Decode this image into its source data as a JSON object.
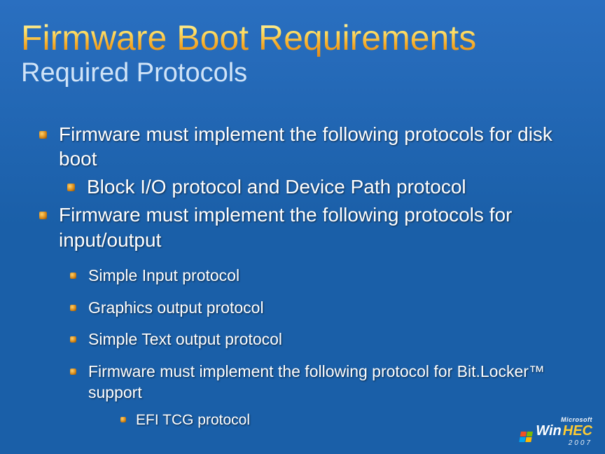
{
  "slide": {
    "background_gradient": [
      "#2a6fc0",
      "#1a5fa8"
    ],
    "title": "Firmware Boot Requirements",
    "title_gradient": [
      "#fff3b0",
      "#ffe36b",
      "#f5a623",
      "#e08a1a"
    ],
    "title_fontsize": 50,
    "subtitle": "Required Protocols",
    "subtitle_color": "#cfe3f7",
    "subtitle_fontsize": 38,
    "bullet_color_gradient": [
      "#ffd36b",
      "#d98a1a",
      "#7a4a0a"
    ],
    "text_color": "#ffffff",
    "bullets_lvl1": [
      {
        "text": "Firmware must implement the following protocols for disk boot",
        "indent": false
      },
      {
        "text": "Block I/O protocol and Device Path protocol",
        "indent": true
      },
      {
        "text": "Firmware must implement the following protocols for input/output",
        "indent": false
      }
    ],
    "bullets_lvl2": [
      "Simple Input protocol",
      "Graphics output protocol",
      "Simple Text output protocol",
      "Firmware must implement the following protocol for Bit.Locker™ support"
    ],
    "bullets_lvl3": [
      "EFI TCG protocol"
    ],
    "lvl1_fontsize": 28,
    "lvl2_fontsize": 23,
    "lvl3_fontsize": 21
  },
  "logo": {
    "vendor": "Microsoft",
    "brand_part1": "Win",
    "brand_part2": "HEC",
    "year": "2007",
    "flag_colors": [
      "#f25022",
      "#7fba00",
      "#00a4ef",
      "#ffb900"
    ],
    "brand_part1_color": "#ffffff",
    "brand_part2_color": "#ffcc33"
  }
}
